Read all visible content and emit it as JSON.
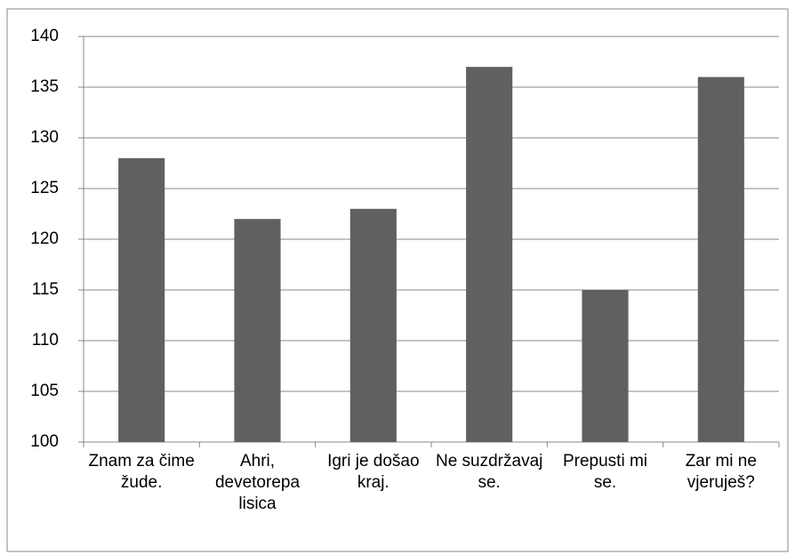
{
  "chart_data": {
    "type": "bar",
    "categories": [
      "Znam za čime žude.",
      "Ahri, devetorepa lisica",
      "Igri je došao kraj.",
      "Ne suzdržavaj se.",
      "Prepusti mi se.",
      "Zar mi ne vjeruješ?"
    ],
    "values": [
      128,
      122,
      123,
      137,
      115,
      136
    ],
    "color": "#606060",
    "ylim": [
      100,
      140
    ],
    "yticks": [
      100,
      105,
      110,
      115,
      120,
      125,
      130,
      135,
      140
    ],
    "grid": true
  }
}
